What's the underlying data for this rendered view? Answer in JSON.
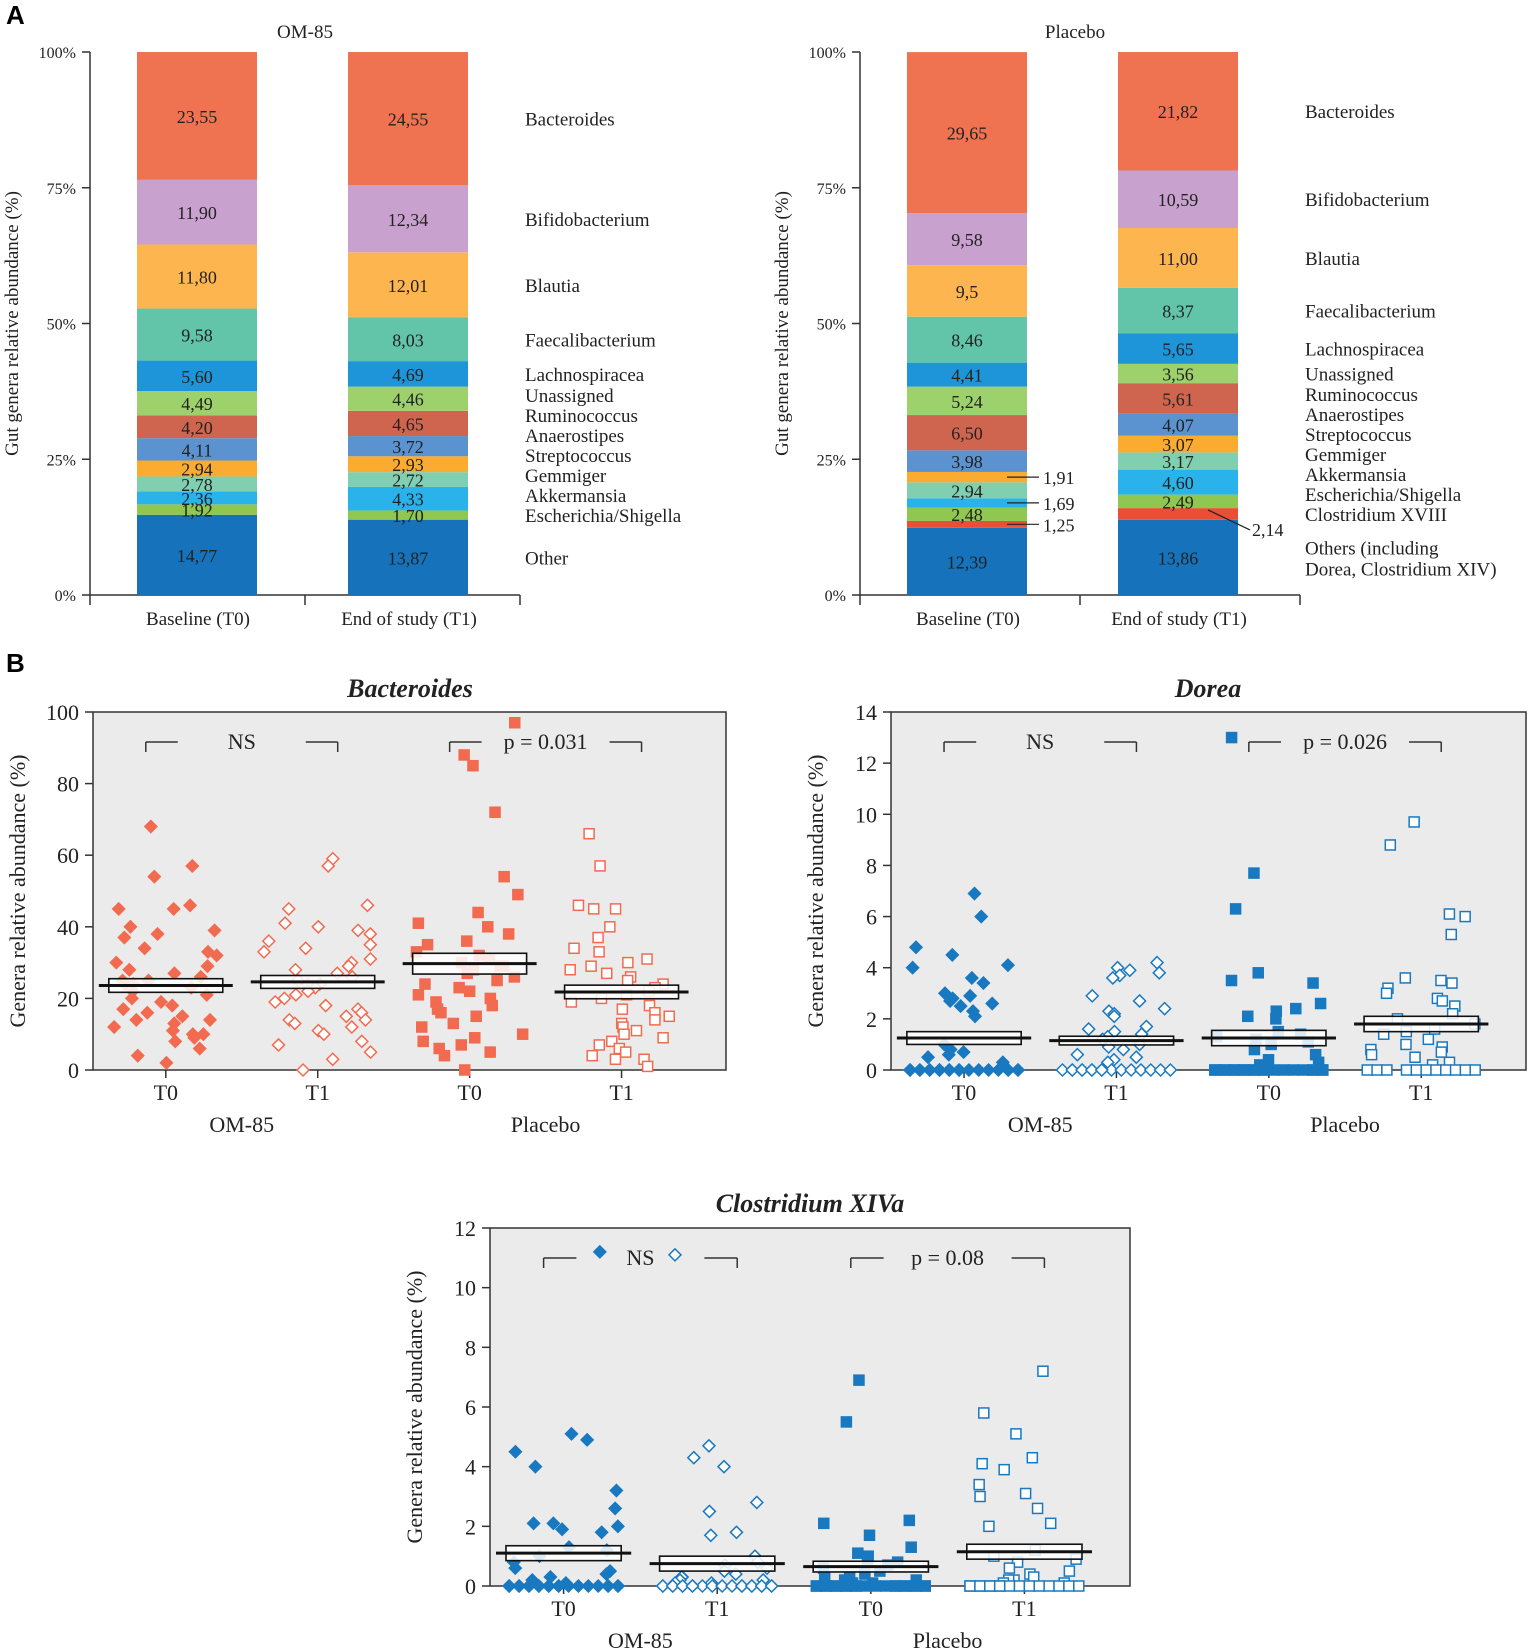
{
  "figure": {
    "panelA_label": "A",
    "panelB_label": "B"
  },
  "colors": {
    "Bacteroides": "#f07351",
    "Bifidobacterium": "#c9a1cf",
    "Blautia": "#fdb54f",
    "Faecalibacterium": "#62c4a8",
    "Lachnospiracea": "#1e95d8",
    "Unassigned": "#9dd16c",
    "Ruminococcus": "#d0654f",
    "Anaerostipes": "#5b92d0",
    "Streptococcus": "#fbab30",
    "Gemmiger": "#7fcfb0",
    "Akkermansia": "#2ab3ea",
    "Escherichia/Shigella": "#8fc750",
    "Clostridium XVIII": "#ea4e35",
    "Other": "#1572bb",
    "bacteroides_points": "#f26a4f",
    "blue_points": "#1878c0",
    "plot_bg": "#ebebeb"
  },
  "chart_data": [
    {
      "type": "bar",
      "stacked": true,
      "panel": "A",
      "title": "OM-85",
      "ylabel": "Gut genera relative abundance (%)",
      "yticks": [
        "0%",
        "25%",
        "50%",
        "75%",
        "100%"
      ],
      "ylim": [
        0,
        100
      ],
      "categories": [
        "Baseline (T0)",
        "End of study (T1)"
      ],
      "series": [
        {
          "name": "Other",
          "legend": "Other",
          "values": [
            14.77,
            13.87
          ],
          "labels": [
            "14,77",
            "13,87"
          ]
        },
        {
          "name": "Escherichia/Shigella",
          "legend": "Escherichia/Shigella",
          "values": [
            1.92,
            1.7
          ],
          "labels": [
            "1,92",
            "1,70"
          ]
        },
        {
          "name": "Akkermansia",
          "legend": "Akkermansia",
          "values": [
            2.36,
            4.33
          ],
          "labels": [
            "2,36",
            "4,33"
          ]
        },
        {
          "name": "Gemmiger",
          "legend": "Gemmiger",
          "values": [
            2.78,
            2.72
          ],
          "labels": [
            "2,78",
            "2,72"
          ]
        },
        {
          "name": "Streptococcus",
          "legend": "Streptococcus",
          "values": [
            2.94,
            2.93
          ],
          "labels": [
            "2,94",
            "2,93"
          ]
        },
        {
          "name": "Anaerostipes",
          "legend": "Anaerostipes",
          "values": [
            4.11,
            3.72
          ],
          "labels": [
            "4,11",
            "3,72"
          ]
        },
        {
          "name": "Ruminococcus",
          "legend": "Ruminococcus",
          "values": [
            4.2,
            4.65
          ],
          "labels": [
            "4,20",
            "4,65"
          ]
        },
        {
          "name": "Unassigned",
          "legend": "Unassigned",
          "values": [
            4.49,
            4.46
          ],
          "labels": [
            "4,49",
            "4,46"
          ]
        },
        {
          "name": "Lachnospiracea",
          "legend": "Lachnospiracea",
          "values": [
            5.6,
            4.69
          ],
          "labels": [
            "5,60",
            "4,69"
          ]
        },
        {
          "name": "Faecalibacterium",
          "legend": "Faecalibacterium",
          "values": [
            9.58,
            8.03
          ],
          "labels": [
            "9,58",
            "8,03"
          ]
        },
        {
          "name": "Blautia",
          "legend": "Blautia",
          "values": [
            11.8,
            12.01
          ],
          "labels": [
            "11,80",
            "12,01"
          ]
        },
        {
          "name": "Bifidobacterium",
          "legend": "Bifidobacterium",
          "values": [
            11.9,
            12.34
          ],
          "labels": [
            "11,90",
            "12,34"
          ]
        },
        {
          "name": "Bacteroides",
          "legend": "Bacteroides",
          "values": [
            23.55,
            24.55
          ],
          "labels": [
            "23,55",
            "24,55"
          ]
        }
      ]
    },
    {
      "type": "bar",
      "stacked": true,
      "panel": "A",
      "title": "Placebo",
      "ylabel": "Gut genera relative abundance (%)",
      "yticks": [
        "0%",
        "25%",
        "50%",
        "75%",
        "100%"
      ],
      "ylim": [
        0,
        100
      ],
      "categories": [
        "Baseline (T0)",
        "End of study (T1)"
      ],
      "series": [
        {
          "name": "Other",
          "legend": "Others (including|Dorea, Clostridium XIV)",
          "values": [
            12.39,
            13.86
          ],
          "labels": [
            "12,39",
            "13,86"
          ]
        },
        {
          "name": "Clostridium XVIII",
          "legend": "Clostridium XVIII",
          "values": [
            1.25,
            2.14
          ],
          "labels": [
            "1,25",
            "2,14"
          ]
        },
        {
          "name": "Escherichia/Shigella",
          "legend": "Escherichia/Shigella",
          "values": [
            2.48,
            2.49
          ],
          "labels": [
            "2,48",
            "2,49"
          ]
        },
        {
          "name": "Akkermansia",
          "legend": "Akkermansia",
          "values": [
            1.69,
            4.6
          ],
          "labels": [
            "1,69",
            "4,60"
          ]
        },
        {
          "name": "Gemmiger",
          "legend": "Gemmiger",
          "values": [
            2.94,
            3.17
          ],
          "labels": [
            "2,94",
            "3,17"
          ]
        },
        {
          "name": "Streptococcus",
          "legend": "Streptococcus",
          "values": [
            1.91,
            3.07
          ],
          "labels": [
            "1,91",
            "3,07"
          ]
        },
        {
          "name": "Anaerostipes",
          "legend": "Anaerostipes",
          "values": [
            3.98,
            4.07
          ],
          "labels": [
            "3,98",
            "4,07"
          ]
        },
        {
          "name": "Ruminococcus",
          "legend": "Ruminococcus",
          "values": [
            6.5,
            5.61
          ],
          "labels": [
            "6,50",
            "5,61"
          ]
        },
        {
          "name": "Unassigned",
          "legend": "Unassigned",
          "values": [
            5.24,
            3.56
          ],
          "labels": [
            "5,24",
            "3,56"
          ]
        },
        {
          "name": "Lachnospiracea",
          "legend": "Lachnospiracea",
          "values": [
            4.41,
            5.65
          ],
          "labels": [
            "4,41",
            "5,65"
          ]
        },
        {
          "name": "Faecalibacterium",
          "legend": "Faecalibacterium",
          "values": [
            8.46,
            8.37
          ],
          "labels": [
            "8,46",
            "8,37"
          ]
        },
        {
          "name": "Blautia",
          "legend": "Blautia",
          "values": [
            9.5,
            11.0
          ],
          "labels": [
            "9,5",
            "11,00"
          ]
        },
        {
          "name": "Bifidobacterium",
          "legend": "Bifidobacterium",
          "values": [
            9.58,
            10.59
          ],
          "labels": [
            "9,58",
            "10,59"
          ]
        },
        {
          "name": "Bacteroides",
          "legend": "Bacteroides",
          "values": [
            29.65,
            21.82
          ],
          "labels": [
            "29,65",
            "21,82"
          ]
        }
      ]
    },
    {
      "type": "scatter",
      "panel": "B",
      "title": "Bacteroides",
      "ylabel": "Genera relative abundance (%)",
      "ylim": [
        0,
        100
      ],
      "yticks": [
        0,
        20,
        40,
        60,
        80,
        100
      ],
      "xticks": [
        "T0",
        "T1",
        "T0",
        "T1"
      ],
      "groups": [
        "OM-85",
        "Placebo"
      ],
      "annotations": [
        "NS",
        "p = 0.031"
      ],
      "color_key": "bacteroides_points",
      "series": [
        {
          "name": "OM-85 T0",
          "marker": "diamond-filled",
          "mean": 23.6,
          "sem": 1.9,
          "values": [
            68,
            57,
            54,
            46,
            45,
            45,
            40,
            39,
            38,
            37,
            34,
            33,
            32,
            30,
            29,
            28,
            27,
            26,
            25,
            25,
            24,
            24,
            23,
            22,
            21,
            20,
            19,
            18,
            17,
            16,
            15,
            14,
            14,
            13,
            12,
            11,
            10,
            10,
            9,
            8,
            6,
            4,
            2
          ]
        },
        {
          "name": "OM-85 T1",
          "marker": "diamond-open",
          "mean": 24.6,
          "sem": 1.8,
          "values": [
            59,
            57,
            46,
            45,
            41,
            40,
            39,
            38,
            36,
            35,
            34,
            33,
            31,
            30,
            29,
            28,
            27,
            26,
            25,
            24,
            24,
            23,
            22,
            21,
            20,
            19,
            18,
            17,
            16,
            15,
            14,
            14,
            13,
            12,
            11,
            10,
            8,
            7,
            5,
            3,
            0
          ]
        },
        {
          "name": "Placebo T0",
          "marker": "square-filled",
          "mean": 29.7,
          "sem": 2.9,
          "values": [
            97,
            88,
            85,
            72,
            54,
            49,
            44,
            41,
            40,
            38,
            36,
            35,
            33,
            32,
            31,
            30,
            29,
            29,
            28,
            27,
            26,
            25,
            24,
            23,
            22,
            21,
            20,
            19,
            18,
            17,
            16,
            15,
            13,
            12,
            10,
            9,
            8,
            7,
            6,
            5,
            4,
            0
          ]
        },
        {
          "name": "Placebo T1",
          "marker": "square-open",
          "mean": 21.8,
          "sem": 1.9,
          "values": [
            66,
            57,
            46,
            45,
            45,
            40,
            37,
            34,
            33,
            31,
            30,
            29,
            28,
            27,
            26,
            25,
            24,
            23,
            22,
            21,
            20,
            19,
            18,
            17,
            16,
            15,
            14,
            13,
            12,
            11,
            10,
            9,
            8,
            7,
            6,
            5,
            4,
            3,
            3,
            1
          ]
        }
      ]
    },
    {
      "type": "scatter",
      "panel": "B",
      "title": "Dorea",
      "ylabel": "Genera relative abundance (%)",
      "ylim": [
        0,
        14
      ],
      "yticks": [
        0,
        2,
        4,
        6,
        8,
        10,
        12,
        14
      ],
      "xticks": [
        "T0",
        "T1",
        "T0",
        "T1"
      ],
      "groups": [
        "OM-85",
        "Placebo"
      ],
      "annotations": [
        "NS",
        "p = 0.026"
      ],
      "color_key": "blue_points",
      "series": [
        {
          "name": "OM-85 T0",
          "marker": "diamond-filled",
          "mean": 1.25,
          "sem": 0.25,
          "values": [
            6.9,
            6.0,
            4.8,
            4.5,
            4.1,
            4.0,
            3.6,
            3.4,
            3.0,
            2.9,
            2.8,
            2.7,
            2.6,
            2.5,
            2.3,
            2.1,
            1.0,
            0.8,
            0.7,
            0.6,
            0.5,
            0.3,
            0,
            0,
            0,
            0,
            0,
            0,
            0,
            0,
            0,
            0,
            0,
            0,
            0,
            0,
            0,
            0,
            0,
            0,
            0,
            0
          ]
        },
        {
          "name": "OM-85 T1",
          "marker": "diamond-open",
          "mean": 1.15,
          "sem": 0.17,
          "values": [
            4.2,
            4.0,
            3.9,
            3.8,
            3.7,
            3.6,
            2.9,
            2.7,
            2.4,
            2.3,
            2.2,
            2.1,
            1.7,
            1.6,
            1.5,
            1.4,
            1.3,
            1.2,
            1.0,
            0.9,
            0.8,
            0.6,
            0.5,
            0.4,
            0.3,
            0,
            0,
            0,
            0,
            0,
            0,
            0,
            0,
            0,
            0,
            0,
            0,
            0,
            0,
            0,
            0
          ]
        },
        {
          "name": "Placebo T0",
          "marker": "square-filled",
          "mean": 1.25,
          "sem": 0.3,
          "values": [
            13.0,
            7.7,
            6.3,
            3.8,
            3.5,
            3.4,
            2.6,
            2.4,
            2.3,
            2.1,
            2.0,
            1.5,
            1.4,
            1.3,
            1.2,
            1.1,
            1.0,
            0.8,
            0.6,
            0.4,
            0.3,
            0.2,
            0,
            0,
            0,
            0,
            0,
            0,
            0,
            0,
            0,
            0,
            0,
            0,
            0,
            0,
            0,
            0,
            0,
            0,
            0,
            0
          ]
        },
        {
          "name": "Placebo T1",
          "marker": "square-open",
          "mean": 1.8,
          "sem": 0.3,
          "values": [
            9.7,
            8.8,
            6.1,
            6.0,
            5.3,
            3.6,
            3.5,
            3.4,
            3.2,
            3.0,
            2.8,
            2.7,
            2.5,
            2.2,
            2.0,
            1.8,
            1.6,
            1.5,
            1.4,
            1.2,
            1.0,
            0.9,
            0.8,
            0.7,
            0.6,
            0.5,
            0.3,
            0.2,
            0,
            0,
            0,
            0,
            0,
            0,
            0,
            0,
            0,
            0,
            0
          ]
        }
      ]
    },
    {
      "type": "scatter",
      "panel": "B",
      "title": "Clostridium XIVa",
      "ylabel": "Genera relative abundance (%)",
      "ylim": [
        0,
        12
      ],
      "yticks": [
        0,
        2,
        4,
        6,
        8,
        10,
        12
      ],
      "xticks": [
        "T0",
        "T1",
        "T0",
        "T1"
      ],
      "groups": [
        "OM-85",
        "Placebo"
      ],
      "annotations": [
        "NS",
        "p = 0.08"
      ],
      "color_key": "blue_points",
      "series": [
        {
          "name": "OM-85 T0",
          "marker": "diamond-filled",
          "mean": 1.1,
          "sem": 0.25,
          "values": [
            11.2,
            5.1,
            4.9,
            4.5,
            4.0,
            3.2,
            2.6,
            2.1,
            2.1,
            2.0,
            1.9,
            1.8,
            1.3,
            1.2,
            1.0,
            0.8,
            0.6,
            0.5,
            0.4,
            0.3,
            0.2,
            0.1,
            0,
            0,
            0,
            0,
            0,
            0,
            0,
            0,
            0,
            0,
            0,
            0,
            0,
            0,
            0,
            0,
            0,
            0,
            0,
            0
          ]
        },
        {
          "name": "OM-85 T1",
          "marker": "diamond-open",
          "mean": 0.75,
          "sem": 0.25,
          "values": [
            11.1,
            4.7,
            4.3,
            4.0,
            2.8,
            2.5,
            1.8,
            1.7,
            1.0,
            0.8,
            0.7,
            0.6,
            0.5,
            0.4,
            0.3,
            0.3,
            0.2,
            0.2,
            0.1,
            0.1,
            0,
            0,
            0,
            0,
            0,
            0,
            0,
            0,
            0,
            0,
            0,
            0,
            0,
            0,
            0,
            0,
            0,
            0,
            0,
            0
          ]
        },
        {
          "name": "Placebo T0",
          "marker": "square-filled",
          "mean": 0.65,
          "sem": 0.18,
          "values": [
            6.9,
            5.5,
            2.2,
            2.1,
            1.7,
            1.3,
            1.1,
            1.0,
            0.9,
            0.8,
            0.7,
            0.6,
            0.5,
            0.4,
            0.3,
            0.3,
            0.2,
            0.2,
            0.1,
            0.1,
            0,
            0,
            0,
            0,
            0,
            0,
            0,
            0,
            0,
            0,
            0,
            0,
            0,
            0,
            0,
            0,
            0,
            0,
            0,
            0,
            0
          ]
        },
        {
          "name": "Placebo T1",
          "marker": "square-open",
          "mean": 1.15,
          "sem": 0.25,
          "values": [
            7.2,
            5.8,
            5.1,
            4.3,
            4.1,
            3.9,
            3.4,
            3.1,
            3.0,
            2.6,
            2.1,
            2.0,
            1.2,
            1.0,
            0.9,
            0.8,
            0.6,
            0.5,
            0.4,
            0.3,
            0.2,
            0.2,
            0.1,
            0.1,
            0,
            0,
            0,
            0,
            0,
            0,
            0,
            0,
            0,
            0,
            0,
            0,
            0,
            0,
            0,
            0
          ]
        }
      ]
    }
  ]
}
